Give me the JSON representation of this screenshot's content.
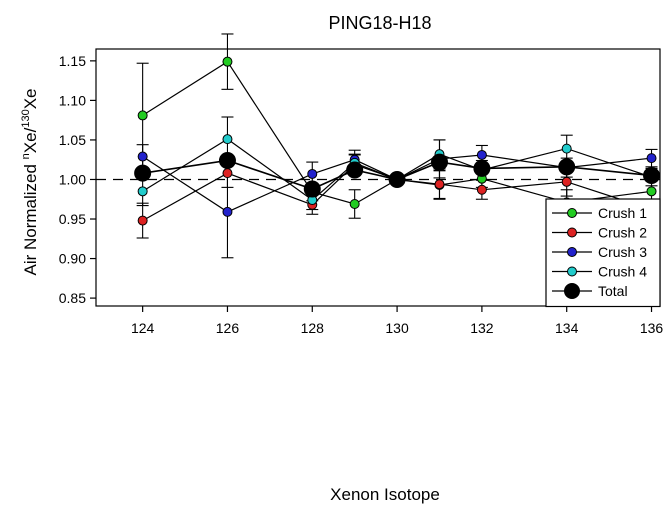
{
  "chart_data": {
    "type": "scatter",
    "title": "PING18-H18",
    "xlabel": "Xenon Isotope",
    "ylabel": {
      "prefix": "Air Normalized ",
      "sup1": "n",
      "mid": "Xe/",
      "sup2": "130",
      "suffix": "Xe"
    },
    "xlim": [
      122.9,
      136.2
    ],
    "ylim": [
      0.84,
      1.165
    ],
    "xticks": [
      "124",
      "126",
      "128",
      "130",
      "132",
      "134",
      "136"
    ],
    "yticks": [
      "0.85",
      "0.90",
      "0.95",
      "1.00",
      "1.05",
      "1.10",
      "1.15"
    ],
    "reference_line": 1.0,
    "legend_position": "bottom-right",
    "series": [
      {
        "name": "Crush 1",
        "color": "#22cc22",
        "points": [
          {
            "x": 124,
            "y": 1.081,
            "err": 0.066
          },
          {
            "x": 126,
            "y": 1.149,
            "err": 0.035
          },
          {
            "x": 128,
            "y": 0.984,
            "err": 0.011
          },
          {
            "x": 129,
            "y": 0.969,
            "err": 0.018
          },
          {
            "x": 130,
            "y": 1.0,
            "err": 0.0
          },
          {
            "x": 131,
            "y": 0.993,
            "err": 0.018
          },
          {
            "x": 132,
            "y": 1.001,
            "err": 0.011
          },
          {
            "x": 134,
            "y": 0.971,
            "err": 0.016
          },
          {
            "x": 136,
            "y": 0.985,
            "err": 0.013
          }
        ]
      },
      {
        "name": "Crush 2",
        "color": "#dd2222",
        "points": [
          {
            "x": 124,
            "y": 0.948,
            "err": 0.022
          },
          {
            "x": 126,
            "y": 1.008,
            "err": 0.018
          },
          {
            "x": 128,
            "y": 0.968,
            "err": 0.012
          },
          {
            "x": 129,
            "y": 1.019,
            "err": 0.012
          },
          {
            "x": 130,
            "y": 1.0,
            "err": 0.0
          },
          {
            "x": 131,
            "y": 0.994,
            "err": 0.018
          },
          {
            "x": 132,
            "y": 0.987,
            "err": 0.012
          },
          {
            "x": 134,
            "y": 0.997,
            "err": 0.018
          },
          {
            "x": 136,
            "y": 0.962,
            "err": 0.011
          }
        ]
      },
      {
        "name": "Crush 3",
        "color": "#2222cc",
        "points": [
          {
            "x": 124,
            "y": 1.029,
            "err": 0.015
          },
          {
            "x": 126,
            "y": 0.959,
            "err": 0.058
          },
          {
            "x": 128,
            "y": 1.007,
            "err": 0.015
          },
          {
            "x": 129,
            "y": 1.025,
            "err": 0.012
          },
          {
            "x": 130,
            "y": 1.0,
            "err": 0.0
          },
          {
            "x": 131,
            "y": 1.026,
            "err": 0.024
          },
          {
            "x": 132,
            "y": 1.031,
            "err": 0.012
          },
          {
            "x": 134,
            "y": 1.015,
            "err": 0.012
          },
          {
            "x": 136,
            "y": 1.027,
            "err": 0.011
          }
        ]
      },
      {
        "name": "Crush 4",
        "color": "#22cccc",
        "points": [
          {
            "x": 124,
            "y": 0.985,
            "err": 0.018
          },
          {
            "x": 126,
            "y": 1.051,
            "err": 0.028
          },
          {
            "x": 128,
            "y": 0.974,
            "err": 0.012
          },
          {
            "x": 129,
            "y": 1.021,
            "err": 0.011
          },
          {
            "x": 130,
            "y": 1.0,
            "err": 0.0
          },
          {
            "x": 131,
            "y": 1.032,
            "err": 0.018
          },
          {
            "x": 132,
            "y": 1.012,
            "err": 0.012
          },
          {
            "x": 134,
            "y": 1.039,
            "err": 0.017
          },
          {
            "x": 136,
            "y": 1.003,
            "err": 0.011
          }
        ]
      },
      {
        "name": "Total",
        "color": "#000000",
        "size": "large",
        "points": [
          {
            "x": 124,
            "y": 1.008,
            "err": 0.0
          },
          {
            "x": 126,
            "y": 1.024,
            "err": 0.0
          },
          {
            "x": 128,
            "y": 0.988,
            "err": 0.0
          },
          {
            "x": 129,
            "y": 1.012,
            "err": 0.0
          },
          {
            "x": 130,
            "y": 1.0,
            "err": 0.0
          },
          {
            "x": 131,
            "y": 1.022,
            "err": 0.0
          },
          {
            "x": 132,
            "y": 1.014,
            "err": 0.0
          },
          {
            "x": 134,
            "y": 1.016,
            "err": 0.0
          },
          {
            "x": 136,
            "y": 1.005,
            "err": 0.0
          }
        ]
      }
    ]
  }
}
